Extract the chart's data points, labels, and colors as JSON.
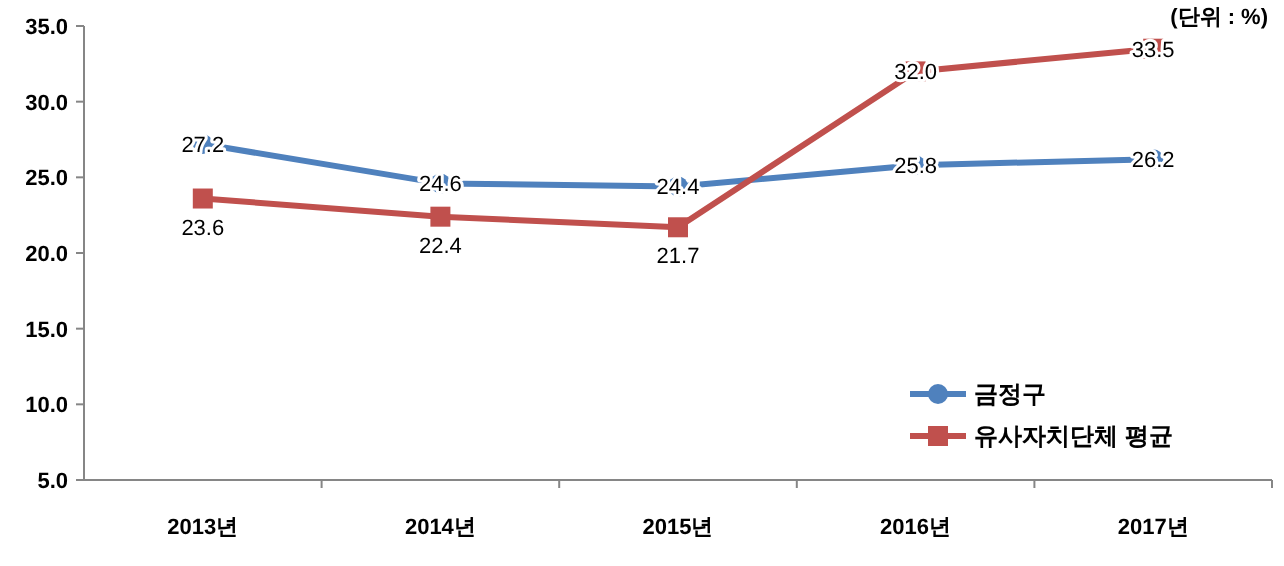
{
  "chart_data": {
    "type": "line",
    "categories": [
      "2013년",
      "2014년",
      "2015년",
      "2016년",
      "2017년"
    ],
    "ylim": [
      5,
      35
    ],
    "yticks": [
      {
        "value": 5,
        "label": "5.0"
      },
      {
        "value": 10,
        "label": "10.0"
      },
      {
        "value": 15,
        "label": "15.0"
      },
      {
        "value": 20,
        "label": "20.0"
      },
      {
        "value": 25,
        "label": "25.0"
      },
      {
        "value": 30,
        "label": "30.0"
      },
      {
        "value": 35,
        "label": "35.0"
      }
    ],
    "series": [
      {
        "name": "금정구",
        "color": "#4f81bd",
        "marker": "circle",
        "values": [
          27.2,
          24.6,
          24.4,
          25.8,
          26.2
        ],
        "value_labels": [
          "27.2",
          "24.6",
          "24.4",
          "25.8",
          "26.2"
        ]
      },
      {
        "name": "유사자치단체 평균",
        "color": "#c0504d",
        "marker": "square",
        "values": [
          23.6,
          22.4,
          21.7,
          32.0,
          33.5
        ],
        "value_labels": [
          "23.6",
          "22.4",
          "21.7",
          "32.0",
          "33.5"
        ]
      }
    ],
    "annotations": [
      "(단위 : %)"
    ],
    "legend": "bottom right",
    "grid": false
  }
}
